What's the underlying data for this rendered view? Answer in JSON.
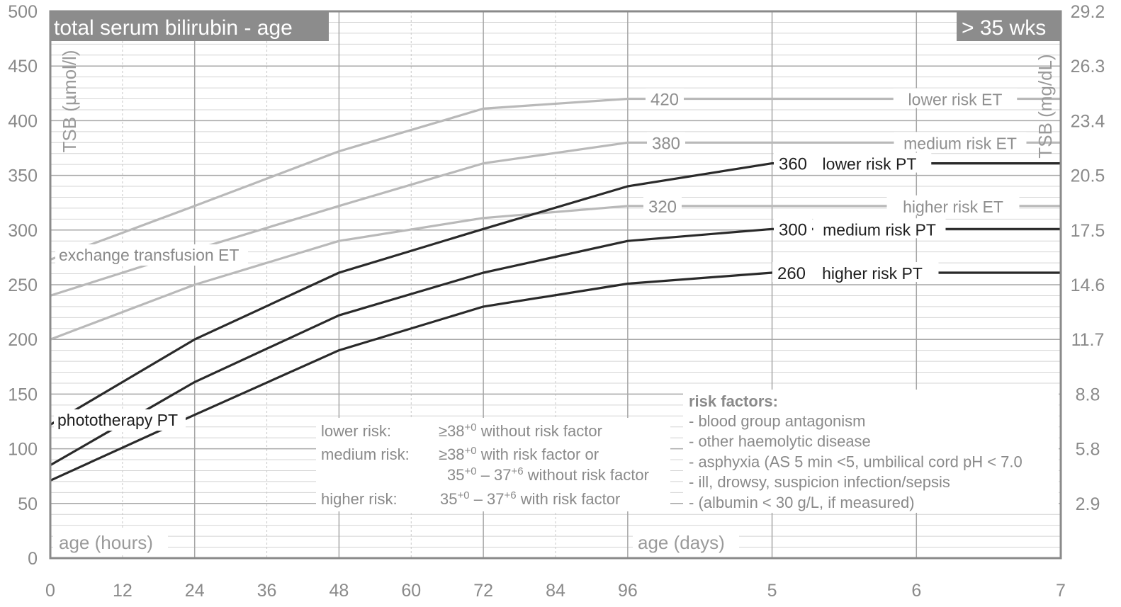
{
  "chart_data": {
    "type": "line",
    "title": "total serum bilirubin - age",
    "badge": "> 35 wks",
    "ylabel_left": "TSB (µmol/l)",
    "ylabel_right": "TSB (mg/dL)",
    "xlabel_hours": "age (hours)",
    "xlabel_days": "age (days)",
    "x_ticks": [
      "0",
      "12",
      "24",
      "36",
      "48",
      "60",
      "72",
      "84",
      "96",
      "5",
      "6",
      "7"
    ],
    "x_tick_hours": [
      0,
      12,
      24,
      36,
      48,
      60,
      72,
      84,
      96,
      120,
      144,
      168
    ],
    "y_ticks_left": [
      "500",
      "450",
      "400",
      "350",
      "300",
      "250",
      "200",
      "150",
      "100",
      "50",
      "0"
    ],
    "y_ticks_right": [
      "29.2",
      "26.3",
      "23.4",
      "20.5",
      "17.5",
      "14.6",
      "11.7",
      "8.8",
      "5.8",
      "2.9"
    ],
    "y_ticks_right_values": [
      500,
      450,
      400,
      350,
      300,
      250,
      200,
      150,
      100,
      50
    ],
    "xlim": [
      0,
      168
    ],
    "ylim": [
      0,
      500
    ],
    "colors": {
      "exchange": "#b9b9b9",
      "photo": "#2a2a2a",
      "frame": "#8a8a8a",
      "title_bg": "#8c8c8c"
    },
    "series": [
      {
        "name": "lower risk ET",
        "group": "exchange",
        "x": [
          0,
          24,
          48,
          72,
          96,
          168
        ],
        "y": [
          273,
          322,
          372,
          411,
          420,
          420
        ],
        "end_value": "420"
      },
      {
        "name": "medium risk ET",
        "group": "exchange",
        "x": [
          0,
          24,
          48,
          72,
          96,
          168
        ],
        "y": [
          240,
          282,
          322,
          361,
          380,
          380
        ],
        "end_value": "380"
      },
      {
        "name": "higher risk ET",
        "group": "exchange",
        "x": [
          0,
          24,
          48,
          72,
          96,
          168
        ],
        "y": [
          200,
          250,
          290,
          311,
          322,
          322
        ],
        "end_value": "320"
      },
      {
        "name": "lower risk PT",
        "group": "photo",
        "x": [
          0,
          24,
          48,
          72,
          96,
          120,
          168
        ],
        "y": [
          122,
          200,
          261,
          301,
          340,
          361,
          361
        ],
        "end_value": "360"
      },
      {
        "name": "medium risk PT",
        "group": "photo",
        "x": [
          0,
          24,
          48,
          72,
          96,
          120,
          168
        ],
        "y": [
          85,
          161,
          222,
          261,
          290,
          301,
          301
        ],
        "end_value": "300"
      },
      {
        "name": "higher risk PT",
        "group": "photo",
        "x": [
          0,
          24,
          48,
          72,
          96,
          120,
          168
        ],
        "y": [
          71,
          131,
          190,
          230,
          251,
          261,
          261
        ],
        "end_value": "260"
      }
    ],
    "annotations": {
      "exchange_transfusion": "exchange transfusion ET",
      "phototherapy": "phototherapy PT",
      "risk_definitions": [
        {
          "label": "lower risk:",
          "lines": [
            [
              {
                "t": "≥38"
              },
              {
                "sup": "+0"
              },
              {
                "t": " without risk factor"
              }
            ]
          ]
        },
        {
          "label": "medium risk:",
          "lines": [
            [
              {
                "t": "≥38"
              },
              {
                "sup": "+0"
              },
              {
                "t": " with risk factor or"
              }
            ],
            [
              {
                "t": "35"
              },
              {
                "sup": "+0"
              },
              {
                "t": " – 37"
              },
              {
                "sup": "+6"
              },
              {
                "t": " without risk factor"
              }
            ]
          ]
        },
        {
          "label": "higher risk:",
          "lines": [
            [
              {
                "t": "35"
              },
              {
                "sup": "+0"
              },
              {
                "t": " – 37"
              },
              {
                "sup": "+6"
              },
              {
                "t": " with risk factor"
              }
            ]
          ]
        }
      ],
      "risk_factors_title": "risk factors:",
      "risk_factors": [
        "- blood group antagonism",
        "- other haemolytic disease",
        "- asphyxia (AS 5 min <5, umbilical cord pH < 7.0",
        "- ill, drowsy, suspicion infection/sepsis",
        "- (albumin < 30 g/L, if measured)"
      ]
    }
  }
}
